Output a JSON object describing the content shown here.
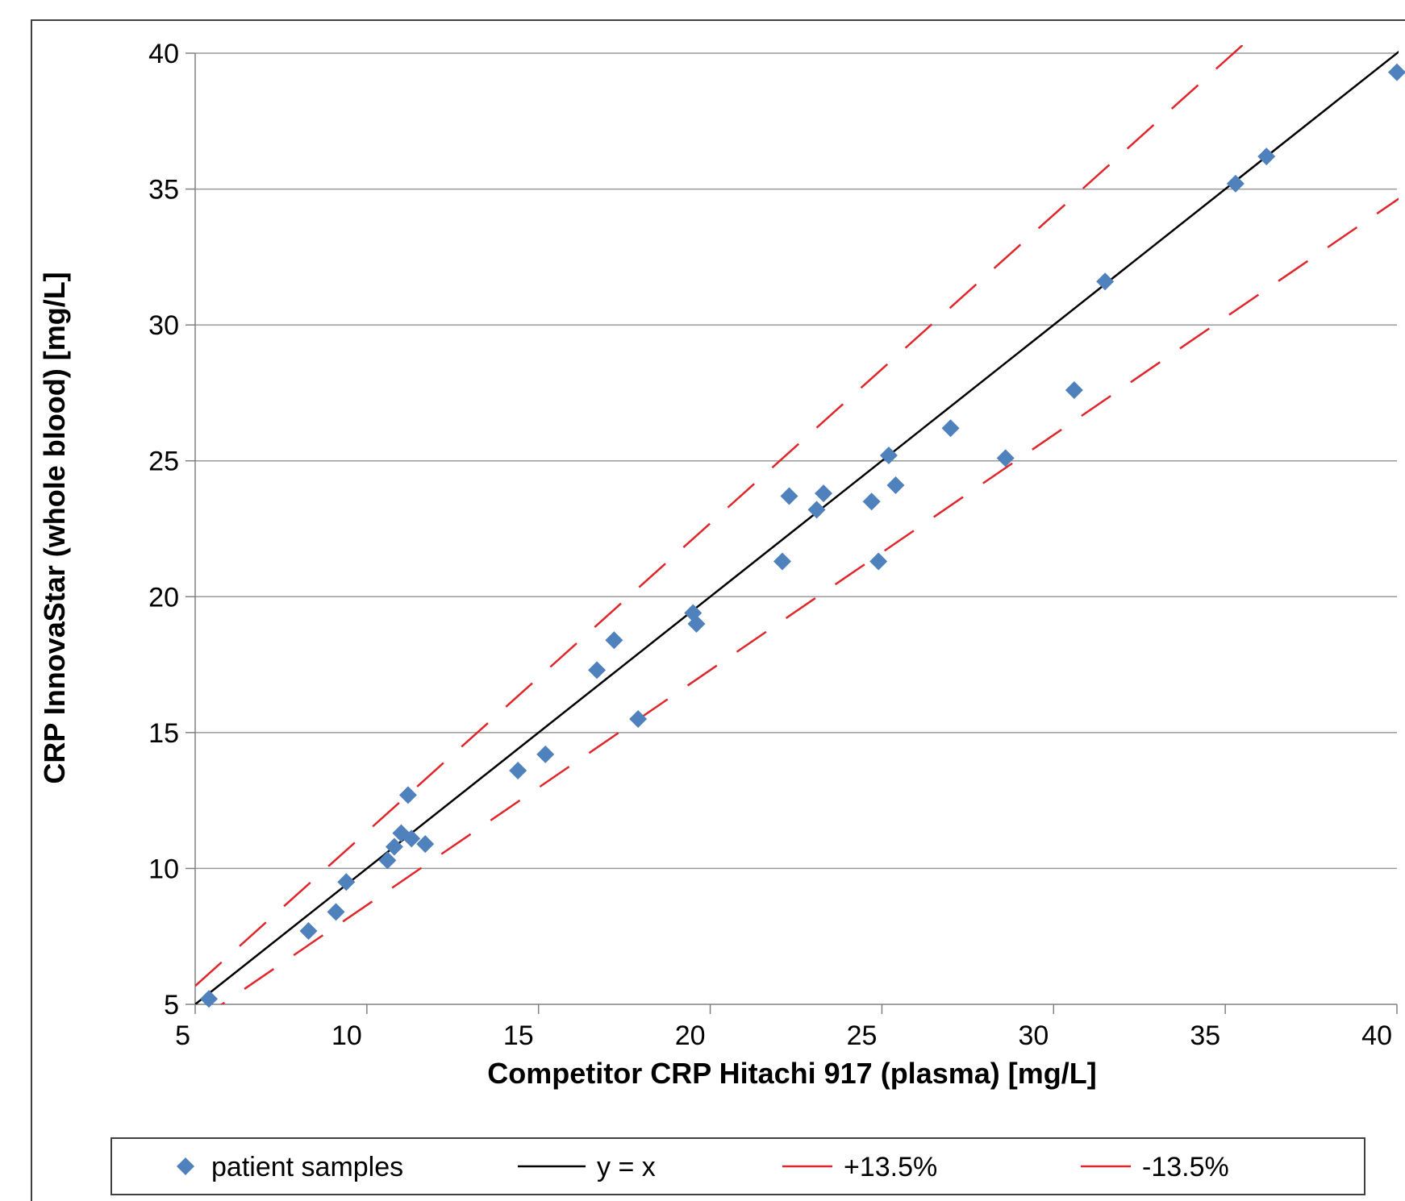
{
  "chart_data": {
    "type": "scatter",
    "title": "",
    "xlabel": "Competitor CRP Hitachi 917 (plasma) [mg/L]",
    "ylabel": "CRP InnovaStar (whole blood) [mg/L]",
    "xlim": [
      5,
      40
    ],
    "ylim": [
      5,
      40
    ],
    "xticks": [
      "5",
      "10",
      "15",
      "20",
      "25",
      "30",
      "35",
      "40"
    ],
    "yticks": [
      "5",
      "10",
      "15",
      "20",
      "25",
      "30",
      "35",
      "40"
    ],
    "grid": "horizontal",
    "legend_position": "bottom",
    "series": [
      {
        "name": "patient samples",
        "kind": "points",
        "color": "#4f81bd",
        "points": [
          [
            5.4,
            5.2
          ],
          [
            8.3,
            7.7
          ],
          [
            9.1,
            8.4
          ],
          [
            9.4,
            9.5
          ],
          [
            10.6,
            10.3
          ],
          [
            10.8,
            10.8
          ],
          [
            11.0,
            11.3
          ],
          [
            11.2,
            12.7
          ],
          [
            11.3,
            11.1
          ],
          [
            11.7,
            10.9
          ],
          [
            14.4,
            13.6
          ],
          [
            15.2,
            14.2
          ],
          [
            16.7,
            17.3
          ],
          [
            17.2,
            18.4
          ],
          [
            17.9,
            15.5
          ],
          [
            19.5,
            19.4
          ],
          [
            19.6,
            19.0
          ],
          [
            22.1,
            21.3
          ],
          [
            22.3,
            23.7
          ],
          [
            23.1,
            23.2
          ],
          [
            23.3,
            23.8
          ],
          [
            24.7,
            23.5
          ],
          [
            24.9,
            21.3
          ],
          [
            25.2,
            25.2
          ],
          [
            25.4,
            24.1
          ],
          [
            27.0,
            26.2
          ],
          [
            28.6,
            25.1
          ],
          [
            30.6,
            27.6
          ],
          [
            31.5,
            31.6
          ],
          [
            35.3,
            35.2
          ],
          [
            36.2,
            36.2
          ],
          [
            40.0,
            39.3
          ]
        ]
      },
      {
        "name": "y = x",
        "kind": "line",
        "color": "#000000",
        "factor": 1.0
      },
      {
        "name": "+13.5%",
        "kind": "dashed",
        "color": "#e0262b",
        "factor": 1.135
      },
      {
        "name": "-13.5%",
        "kind": "dashed",
        "color": "#e0262b",
        "factor": 0.865
      }
    ]
  }
}
